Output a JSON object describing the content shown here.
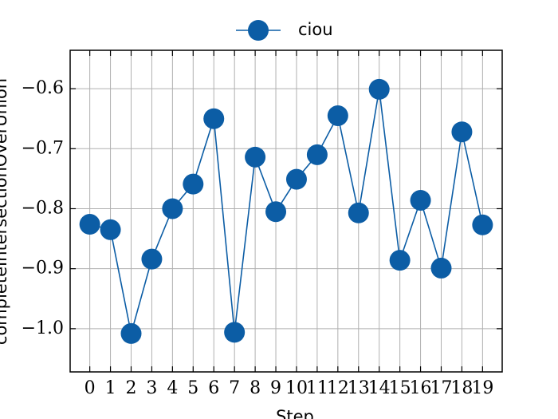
{
  "chart_data": {
    "type": "line",
    "x_label": "Step",
    "y_label": "completeIntersectionOverUnion",
    "x": [
      0,
      1,
      2,
      3,
      4,
      5,
      6,
      7,
      8,
      9,
      10,
      11,
      12,
      13,
      14,
      15,
      16,
      17,
      18,
      19
    ],
    "series": [
      {
        "name": "ciou",
        "color": "#0c5da5",
        "values": [
          -0.826,
          -0.835,
          -1.008,
          -0.884,
          -0.8,
          -0.759,
          -0.65,
          -1.006,
          -0.714,
          -0.805,
          -0.751,
          -0.71,
          -0.645,
          -0.807,
          -0.601,
          -0.886,
          -0.786,
          -0.899,
          -0.672,
          -0.827
        ]
      }
    ],
    "xlim": [
      -0.95,
      19.95
    ],
    "ylim": [
      -1.072,
      -0.536
    ],
    "xticks": [
      0,
      1,
      2,
      3,
      4,
      5,
      6,
      7,
      8,
      9,
      10,
      11,
      12,
      13,
      14,
      15,
      16,
      17,
      18,
      19
    ],
    "yticks": [
      {
        "value": -1.0,
        "label": "−1.0"
      },
      {
        "value": -0.9,
        "label": "−0.9"
      },
      {
        "value": -0.8,
        "label": "−0.8"
      },
      {
        "value": -0.7,
        "label": "−0.7"
      },
      {
        "value": -0.6,
        "label": "−0.6"
      }
    ],
    "grid": true,
    "legend": "top"
  }
}
